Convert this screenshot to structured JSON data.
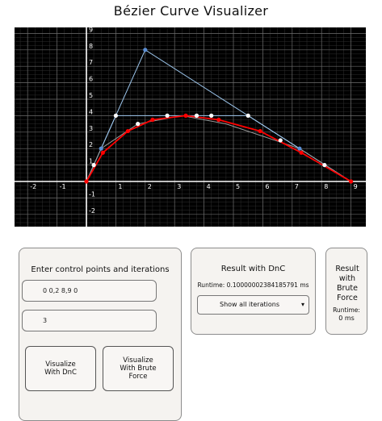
{
  "title": "Bézier Curve Visualizer",
  "chart_data": {
    "type": "scatter",
    "xlim": [
      -2.5,
      9.0
    ],
    "ylim": [
      -2.5,
      9.0
    ],
    "grid": true,
    "x_ticks": [
      "-2",
      "-1",
      "1",
      "2",
      "3",
      "4",
      "5",
      "6",
      "7",
      "8",
      "9"
    ],
    "y_ticks": [
      "-2",
      "-1",
      "1",
      "2",
      "3",
      "4",
      "5",
      "6",
      "7",
      "8",
      "9"
    ],
    "series": [
      {
        "role": "control-polygon",
        "color": "#9ec8ef",
        "points": [
          [
            0,
            0
          ],
          [
            2,
            8
          ],
          [
            9,
            0
          ]
        ]
      },
      {
        "role": "iteration-1",
        "color": "#9ec8ef",
        "points": [
          [
            0,
            0
          ],
          [
            1,
            4
          ],
          [
            5.5,
            4
          ],
          [
            9,
            0
          ]
        ]
      },
      {
        "role": "iteration-2",
        "color": "#999999",
        "points": [
          [
            0,
            0
          ],
          [
            0.5,
            2
          ],
          [
            1.75,
            3.5
          ],
          [
            3.25,
            4
          ],
          [
            4.75,
            3.5
          ],
          [
            7.25,
            2
          ],
          [
            9,
            0
          ]
        ]
      },
      {
        "role": "curve",
        "color": "#ff0000",
        "points": [
          [
            0,
            0
          ],
          [
            0.56,
            1.75
          ],
          [
            1.41,
            3.06
          ],
          [
            2.25,
            3.75
          ],
          [
            3.38,
            4.0
          ],
          [
            4.5,
            3.75
          ],
          [
            5.91,
            3.06
          ],
          [
            7.31,
            1.75
          ],
          [
            9,
            0
          ]
        ]
      }
    ],
    "markers": {
      "blue": [
        [
          2,
          8
        ],
        [
          0.5,
          2
        ],
        [
          7.25,
          2
        ]
      ],
      "white": [
        [
          1,
          4
        ],
        [
          5.5,
          4
        ],
        [
          0.25,
          1
        ],
        [
          1.75,
          3.5
        ],
        [
          2.75,
          4
        ],
        [
          3.75,
          4
        ],
        [
          4.25,
          4
        ],
        [
          6.6,
          2.5
        ],
        [
          8.1,
          1.0
        ]
      ],
      "red": [
        [
          0,
          0
        ],
        [
          0.56,
          1.75
        ],
        [
          1.41,
          3.06
        ],
        [
          2.25,
          3.75
        ],
        [
          3.38,
          4.0
        ],
        [
          4.5,
          3.75
        ],
        [
          5.91,
          3.06
        ],
        [
          7.31,
          1.75
        ],
        [
          9,
          0
        ]
      ]
    }
  },
  "input_panel": {
    "heading": "Enter control points and iterations",
    "points_value": "0 0,2 8,9 0",
    "iterations_value": "3",
    "dnc_button": "Visualize With DnC",
    "brute_button": "Visualize With Brute Force"
  },
  "dnc_panel": {
    "heading": "Result with DnC",
    "runtime": "Runtime: 0.10000002384185791 ms",
    "select_value": "Show all iterations"
  },
  "brute_panel": {
    "heading": "Result with Brute Force",
    "runtime_label": "Runtime:",
    "runtime_value": "0 ms"
  }
}
